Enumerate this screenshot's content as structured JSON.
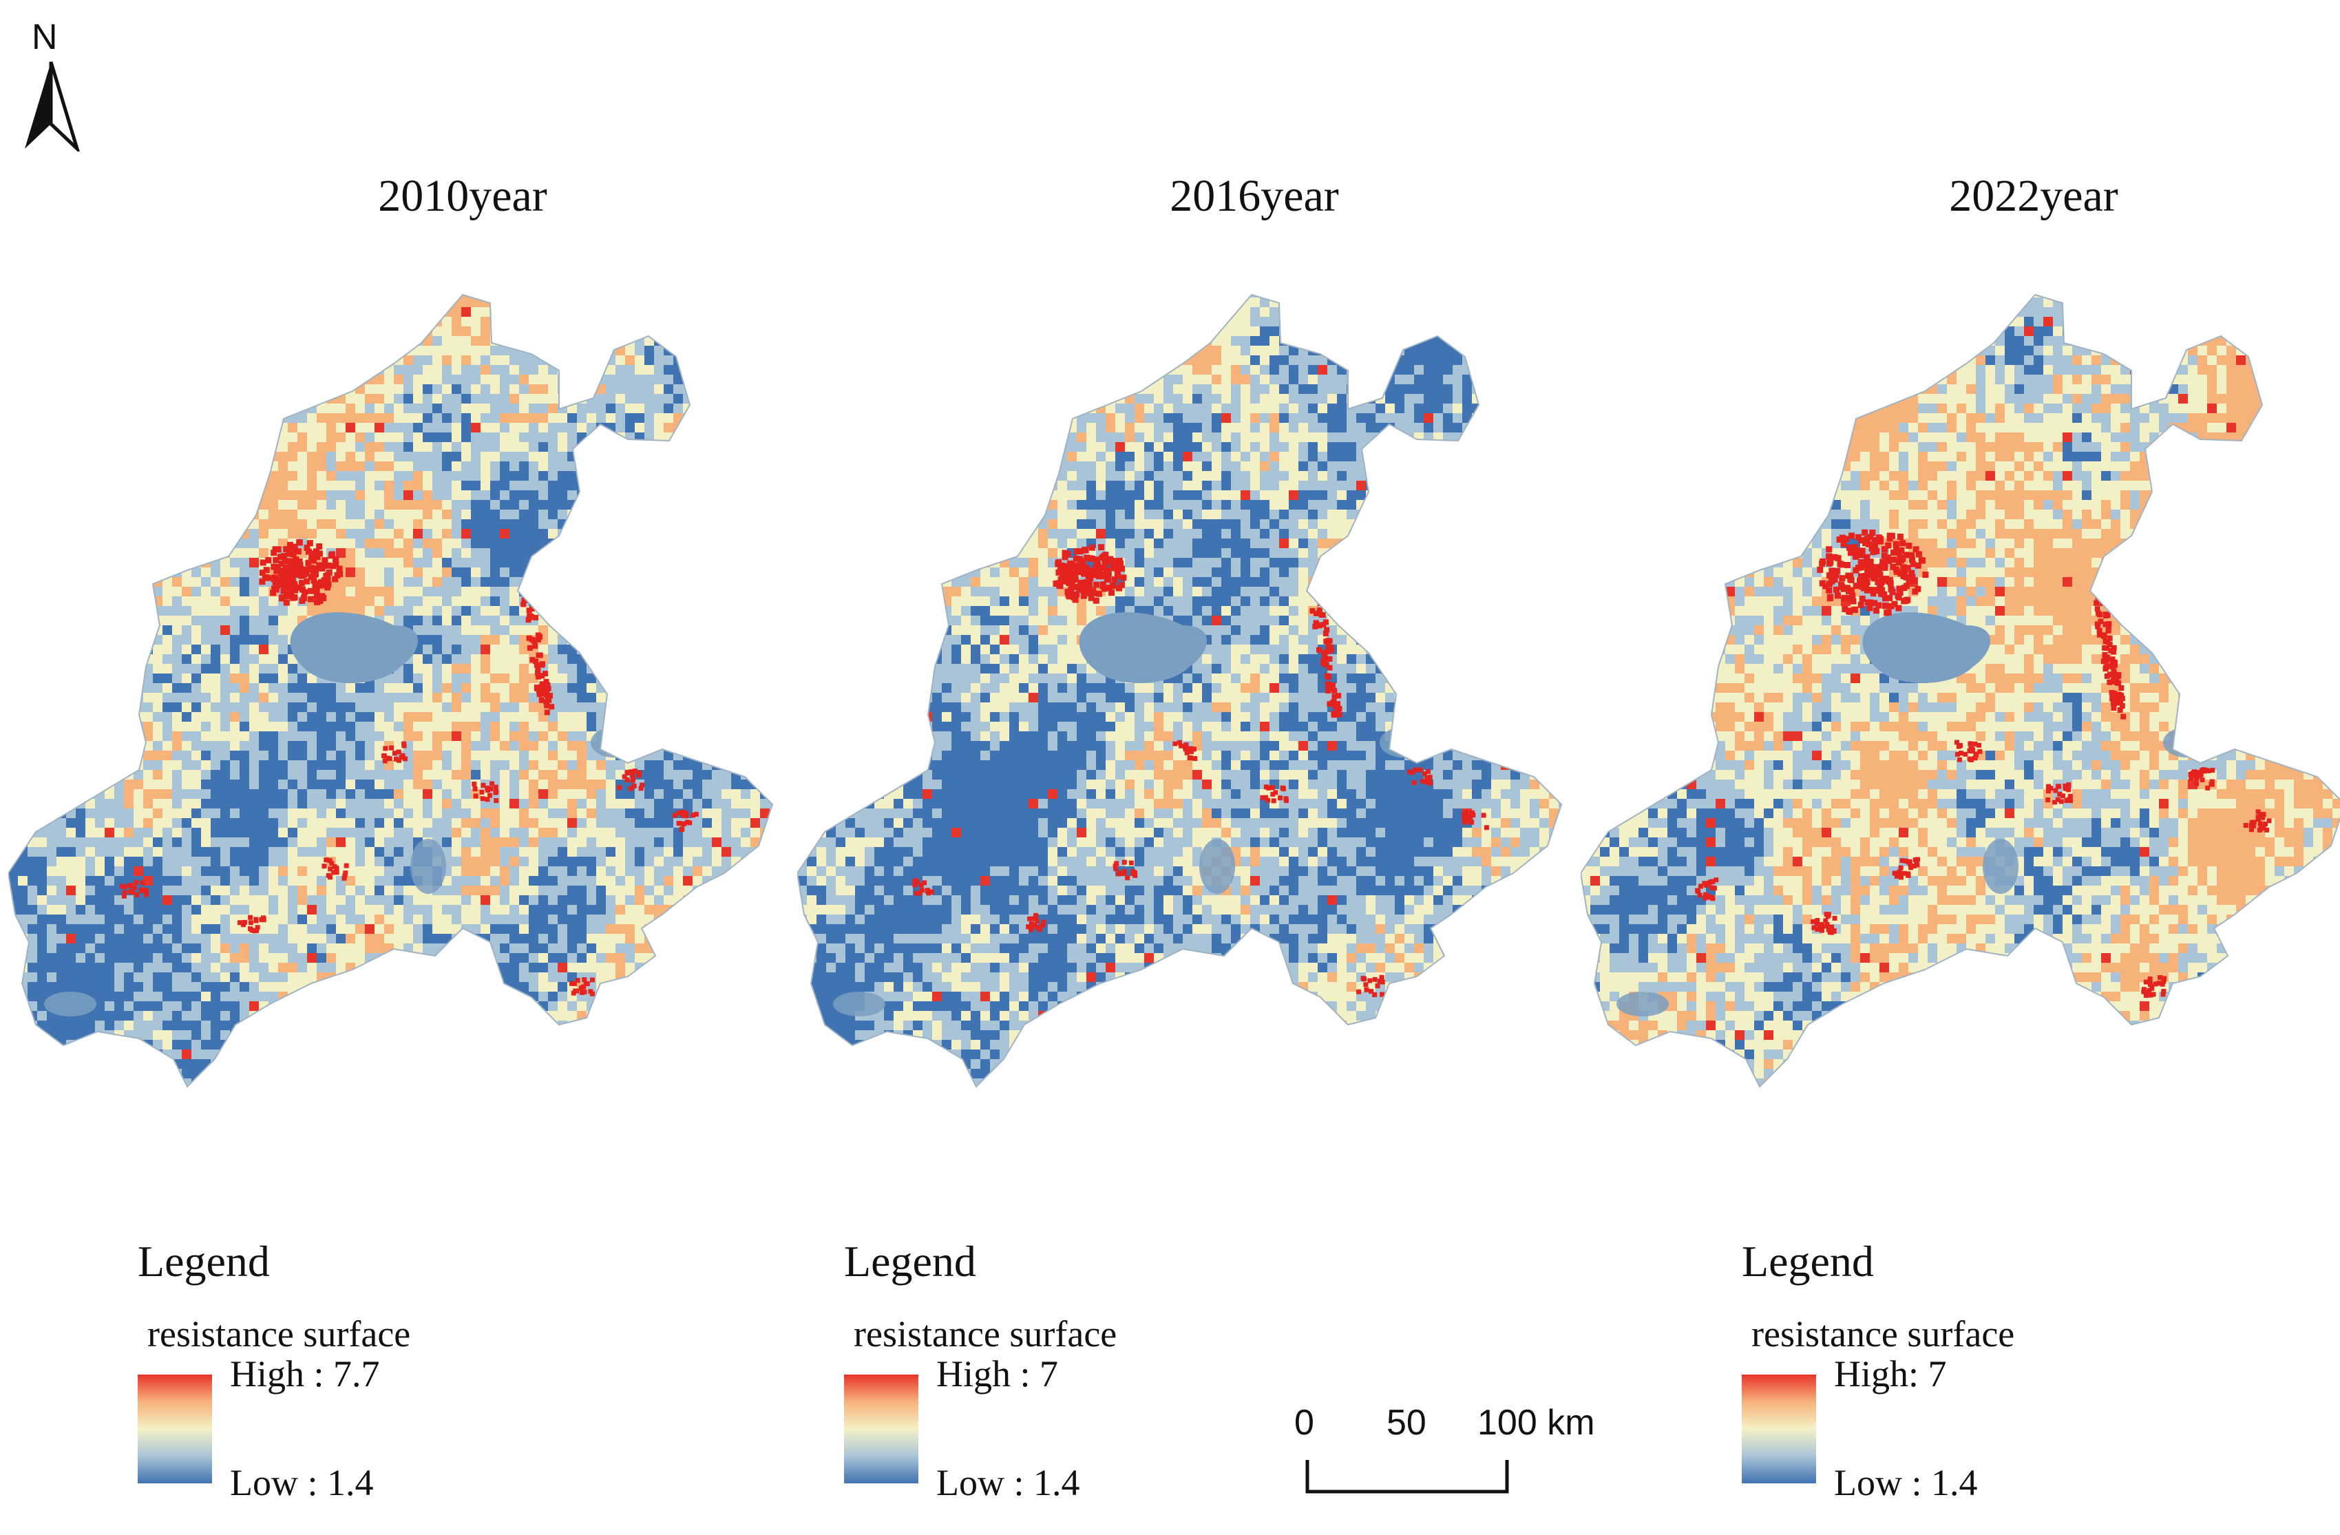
{
  "north_arrow": {
    "letter": "N",
    "icon": "north-arrow-icon"
  },
  "panels": [
    {
      "title": "2010year",
      "legend": {
        "title": "Legend",
        "subtitle": "resistance surface",
        "high_label": "High : 7.7",
        "low_label": "Low : 1.4"
      }
    },
    {
      "title": "2016year",
      "legend": {
        "title": "Legend",
        "subtitle": "resistance surface",
        "high_label": "High : 7",
        "low_label": "Low : 1.4"
      }
    },
    {
      "title": "2022year",
      "legend": {
        "title": "Legend",
        "subtitle": "resistance surface",
        "high_label": "High: 7",
        "low_label": "Low : 1.4"
      }
    }
  ],
  "color_ramp": {
    "high": "#e8352b",
    "upper_mid": "#f7b27a",
    "middle": "#f4f0c6",
    "lower_mid": "#a9c4d6",
    "low": "#3f73b2"
  },
  "map_style": {
    "urban_core": "#e4231f",
    "water_body": "#7a9fc1",
    "background": "#ffffff"
  },
  "scale_bar": {
    "labels": [
      "0",
      "50",
      "100 km"
    ],
    "unit": "km"
  }
}
